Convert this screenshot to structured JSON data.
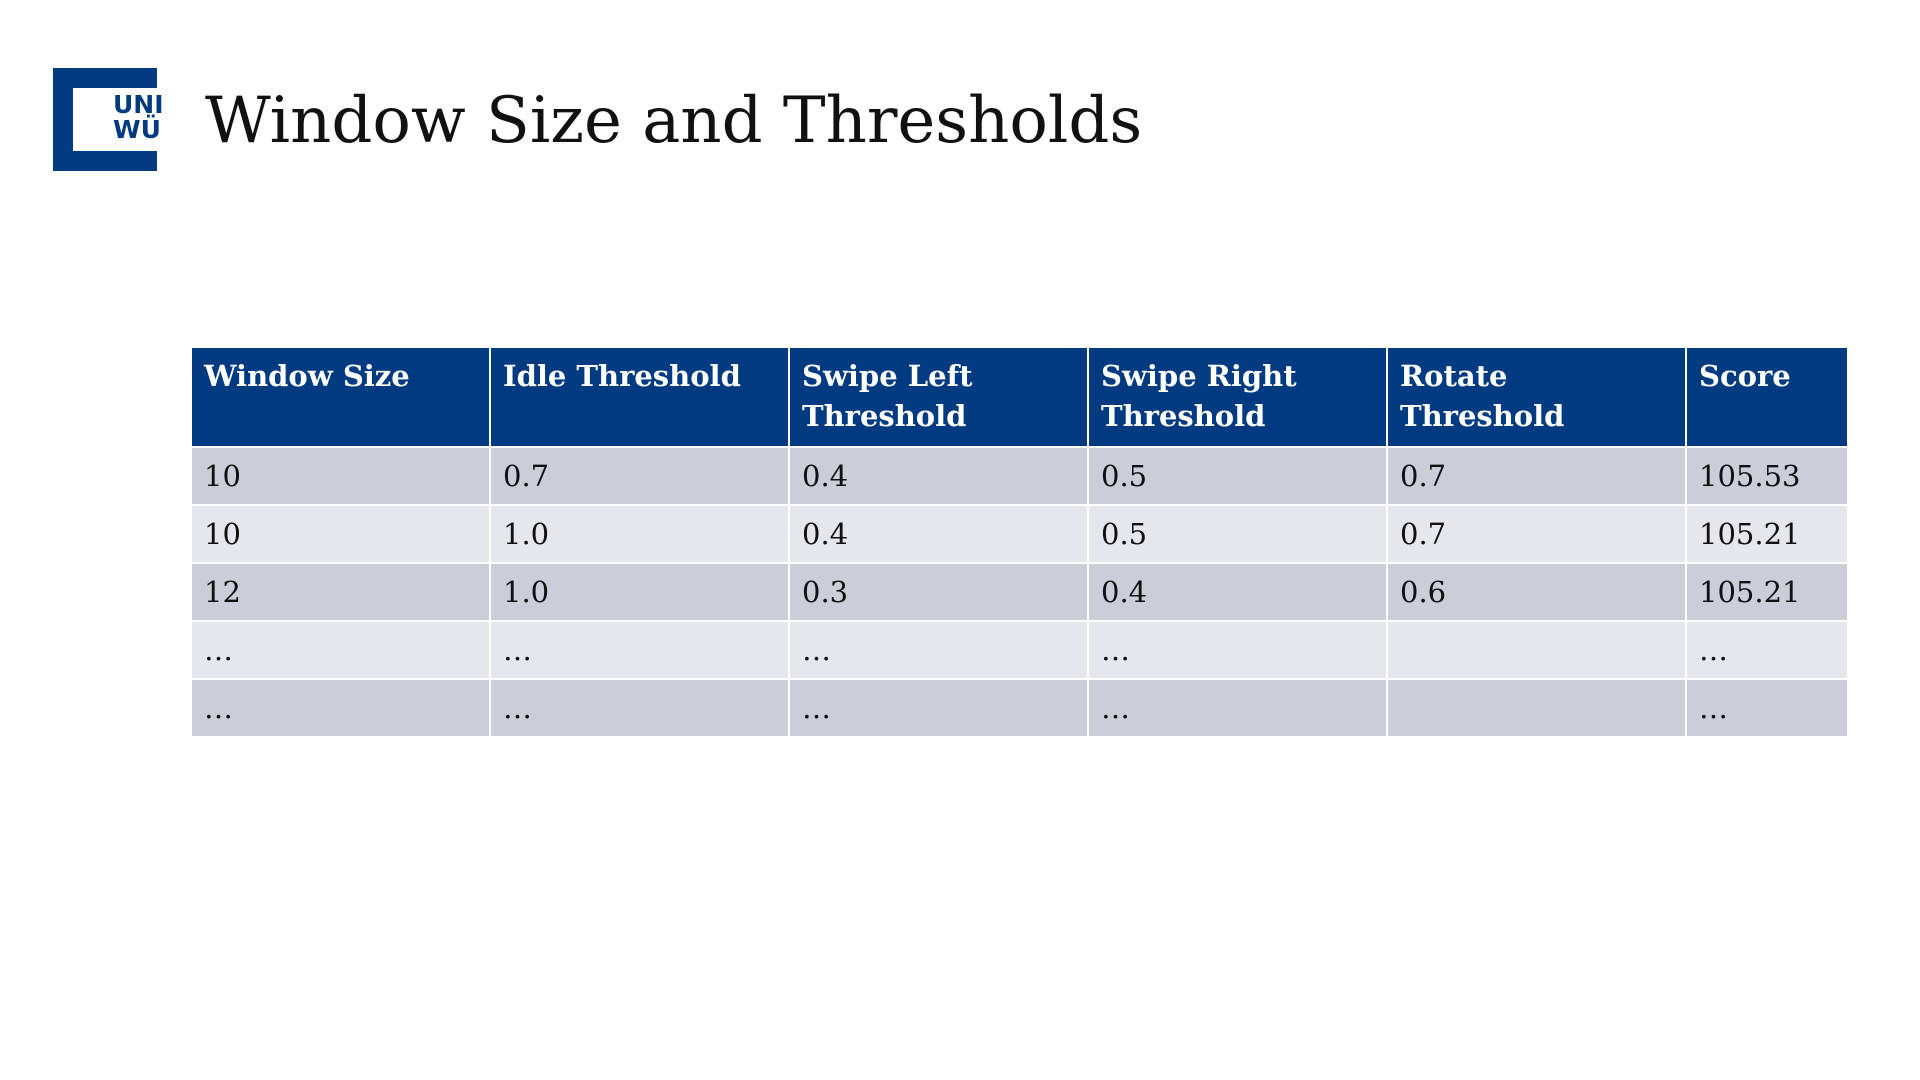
{
  "logo": {
    "line1": "UNI",
    "line2": "WÜ",
    "brand_color": "#003b82"
  },
  "slide": {
    "title": "Window Size and Thresholds"
  },
  "table": {
    "header_color": "#003b82",
    "row_colors": [
      "#cbcdd8",
      "#e6e7ec"
    ],
    "headers": [
      "Window Size",
      "Idle Threshold",
      "Swipe Left Threshold",
      "Swipe Right Threshold",
      "Rotate Threshold",
      "Score"
    ],
    "rows": [
      [
        "10",
        "0.7",
        "0.4",
        "0.5",
        "0.7",
        "105.53"
      ],
      [
        "10",
        "1.0",
        "0.4",
        "0.5",
        "0.7",
        "105.21"
      ],
      [
        "12",
        "1.0",
        "0.3",
        "0.4",
        "0.6",
        "105.21"
      ],
      [
        "…",
        "…",
        "…",
        "…",
        "",
        "…"
      ],
      [
        "…",
        "…",
        "…",
        "…",
        "",
        "…"
      ]
    ]
  }
}
